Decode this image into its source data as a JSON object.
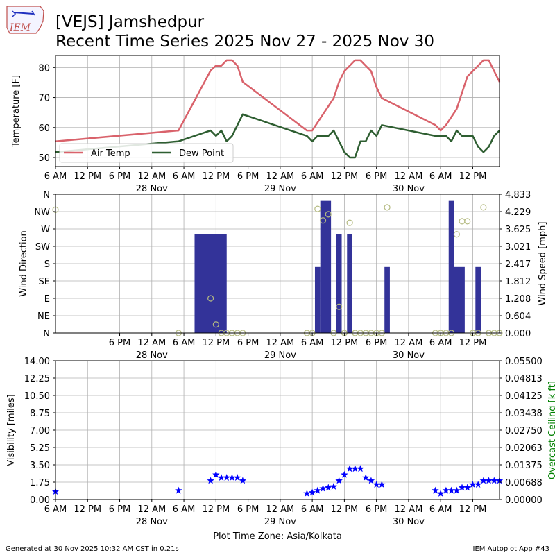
{
  "header": {
    "logo_text": "IEM",
    "title_line1": "[VEJS] Jamshedpur",
    "title_line2": "Recent Time Series 2025 Nov 27 - 2025 Nov 30"
  },
  "footer": {
    "generated": "Generated at 30 Nov 2025 10:32 AM CST in 0.21s",
    "app": "IEM Autoplot App #43",
    "timezone_label": "Plot Time Zone: Asia/Kolkata"
  },
  "colors": {
    "air_temp": "#d9626b",
    "dew_point": "#2e5e31",
    "wind_bar": "#333399",
    "wind_dir_marker": "#b5bb82",
    "visibility": "#0000ff",
    "ceiling_axis": "#008000",
    "grid": "#b0b0b0"
  },
  "chart_data": [
    {
      "type": "line",
      "id": "temperature",
      "ylabel": "Temperature [F]",
      "ylim": [
        47,
        84
      ],
      "yticks": [
        50,
        60,
        70,
        80
      ],
      "xlim_hours": [
        0,
        83
      ],
      "xtick_labels": [
        "6 AM",
        "12 PM",
        "6 PM",
        "12 AM",
        "6 AM",
        "12 PM",
        "6 PM",
        "12 AM",
        "6 AM",
        "12 PM",
        "6 PM",
        "12 AM",
        "6 AM",
        "12 PM"
      ],
      "date_labels": [
        {
          "text": "28 Nov",
          "hour": 18
        },
        {
          "text": "29 Nov",
          "hour": 42
        },
        {
          "text": "30 Nov",
          "hour": 66
        }
      ],
      "grid": true,
      "legend": "lower-left",
      "series": [
        {
          "name": "Air Temp",
          "x": [
            0,
            23,
            26,
            29,
            30,
            31,
            32,
            33,
            34,
            35,
            47,
            48,
            50,
            52,
            53,
            54,
            55,
            56,
            57,
            58,
            59,
            60,
            61,
            71,
            72,
            73,
            75,
            76,
            77,
            80,
            81,
            82,
            83
          ],
          "y": [
            55.4,
            59,
            69,
            79,
            80.6,
            80.6,
            82.4,
            82.4,
            80.6,
            75.2,
            59,
            59,
            64.4,
            69.8,
            75.2,
            78.8,
            80.6,
            82.4,
            82.4,
            80.6,
            78.8,
            73.4,
            69.8,
            60.8,
            59,
            60.8,
            66.2,
            71.6,
            77,
            82.4,
            82.4,
            78.8,
            75.2
          ]
        },
        {
          "name": "Dew Point",
          "x": [
            0,
            23,
            29,
            30,
            31,
            32,
            33,
            35,
            47,
            48,
            49,
            51,
            52,
            54,
            55,
            56,
            57,
            58,
            59,
            60,
            61,
            71,
            73,
            74,
            75,
            76,
            78,
            79,
            80,
            81,
            82,
            83
          ],
          "y": [
            51.8,
            55.4,
            59,
            57.2,
            59,
            55.4,
            57.2,
            64.4,
            57.2,
            55.4,
            57.2,
            57.2,
            59,
            51.8,
            50,
            50,
            55.4,
            55.4,
            59,
            57.2,
            60.8,
            57.2,
            57.2,
            55.4,
            59,
            57.2,
            57.2,
            53.6,
            51.8,
            53.6,
            57.2,
            59
          ]
        }
      ]
    },
    {
      "type": "bar",
      "id": "wind",
      "ylabel": "Wind Direction",
      "ylabel_right": "Wind Speed [mph]",
      "direction_ticks": [
        "N",
        "NE",
        "E",
        "SE",
        "S",
        "SW",
        "W",
        "NW",
        "N"
      ],
      "ylim_right": [
        0,
        4.833
      ],
      "yticks_right": [
        "0.000",
        "0.604",
        "1.208",
        "1.812",
        "2.417",
        "3.021",
        "3.625",
        "4.229",
        "4.833"
      ],
      "xtick_labels": [
        "6 PM",
        "12 AM",
        "6 AM",
        "12 PM",
        "6 PM",
        "12 AM",
        "6 AM",
        "12 PM",
        "6 PM",
        "12 AM",
        "6 AM",
        "12 PM"
      ],
      "date_labels": [
        {
          "text": "28 Nov",
          "hour": 18
        },
        {
          "text": "29 Nov",
          "hour": 42
        },
        {
          "text": "30 Nov",
          "hour": 66
        }
      ],
      "speed_bars": [
        {
          "start": 26,
          "end": 32,
          "speed": 3.45
        },
        {
          "start": 48.5,
          "end": 49.5,
          "speed": 2.3
        },
        {
          "start": 49.5,
          "end": 51.5,
          "speed": 4.6
        },
        {
          "start": 52.5,
          "end": 53.5,
          "speed": 3.45
        },
        {
          "start": 54.5,
          "end": 55.5,
          "speed": 3.45
        },
        {
          "start": 61.5,
          "end": 62.5,
          "speed": 2.3
        },
        {
          "start": 73.5,
          "end": 74.5,
          "speed": 4.6
        },
        {
          "start": 74.5,
          "end": 76.5,
          "speed": 2.3
        },
        {
          "start": 78.5,
          "end": 79.5,
          "speed": 2.3
        }
      ],
      "direction_points": {
        "x": [
          0,
          23,
          29,
          30,
          31,
          32,
          33,
          34,
          35,
          47,
          48,
          49,
          50,
          51,
          52,
          53,
          54,
          55,
          56,
          57,
          58,
          59,
          60,
          61,
          62,
          71,
          72,
          73,
          74,
          75,
          76,
          77,
          78,
          79,
          80,
          81,
          82,
          83
        ],
        "y_deg": [
          320,
          0,
          90,
          22,
          0,
          0,
          0,
          0,
          0,
          0,
          0,
          322,
          292,
          308,
          0,
          68,
          0,
          286,
          0,
          0,
          0,
          0,
          0,
          0,
          326,
          0,
          0,
          0,
          0,
          256,
          290,
          290,
          0,
          0,
          326,
          0,
          0,
          0
        ]
      }
    },
    {
      "type": "scatter",
      "id": "visibility",
      "ylabel": "Visibility [miles]",
      "ylabel_right": "Overcast Ceiling [k ft]",
      "ylim": [
        0,
        14
      ],
      "yticks": [
        "0.00",
        "1.75",
        "3.50",
        "5.25",
        "7.00",
        "8.75",
        "10.50",
        "12.25",
        "14.00"
      ],
      "yticks_right": [
        "0.00000",
        "0.00688",
        "0.01375",
        "0.02063",
        "0.02750",
        "0.03438",
        "0.04125",
        "0.04813",
        "0.05500"
      ],
      "xtick_labels": [
        "6 AM",
        "12 PM",
        "6 PM",
        "12 AM",
        "6 AM",
        "12 PM",
        "6 PM",
        "12 AM",
        "6 AM",
        "12 PM",
        "6 PM",
        "12 AM",
        "6 AM",
        "12 PM"
      ],
      "date_labels": [
        {
          "text": "28 Nov",
          "hour": 18
        },
        {
          "text": "29 Nov",
          "hour": 42
        },
        {
          "text": "30 Nov",
          "hour": 66
        }
      ],
      "series": [
        {
          "name": "Visibility",
          "x": [
            0,
            23,
            29,
            30,
            31,
            32,
            33,
            34,
            35,
            47,
            48,
            49,
            50,
            51,
            52,
            53,
            54,
            55,
            56,
            57,
            58,
            59,
            60,
            61,
            71,
            72,
            73,
            74,
            75,
            76,
            77,
            78,
            79,
            80,
            81,
            82,
            83
          ],
          "y": [
            0.8,
            0.9,
            1.9,
            2.5,
            2.2,
            2.2,
            2.2,
            2.2,
            1.9,
            0.6,
            0.7,
            0.9,
            1.1,
            1.2,
            1.3,
            1.9,
            2.5,
            3.1,
            3.1,
            3.1,
            2.2,
            1.9,
            1.5,
            1.5,
            0.9,
            0.6,
            0.9,
            0.9,
            0.9,
            1.2,
            1.2,
            1.5,
            1.5,
            1.9,
            1.9,
            1.9,
            1.9
          ]
        }
      ]
    }
  ]
}
